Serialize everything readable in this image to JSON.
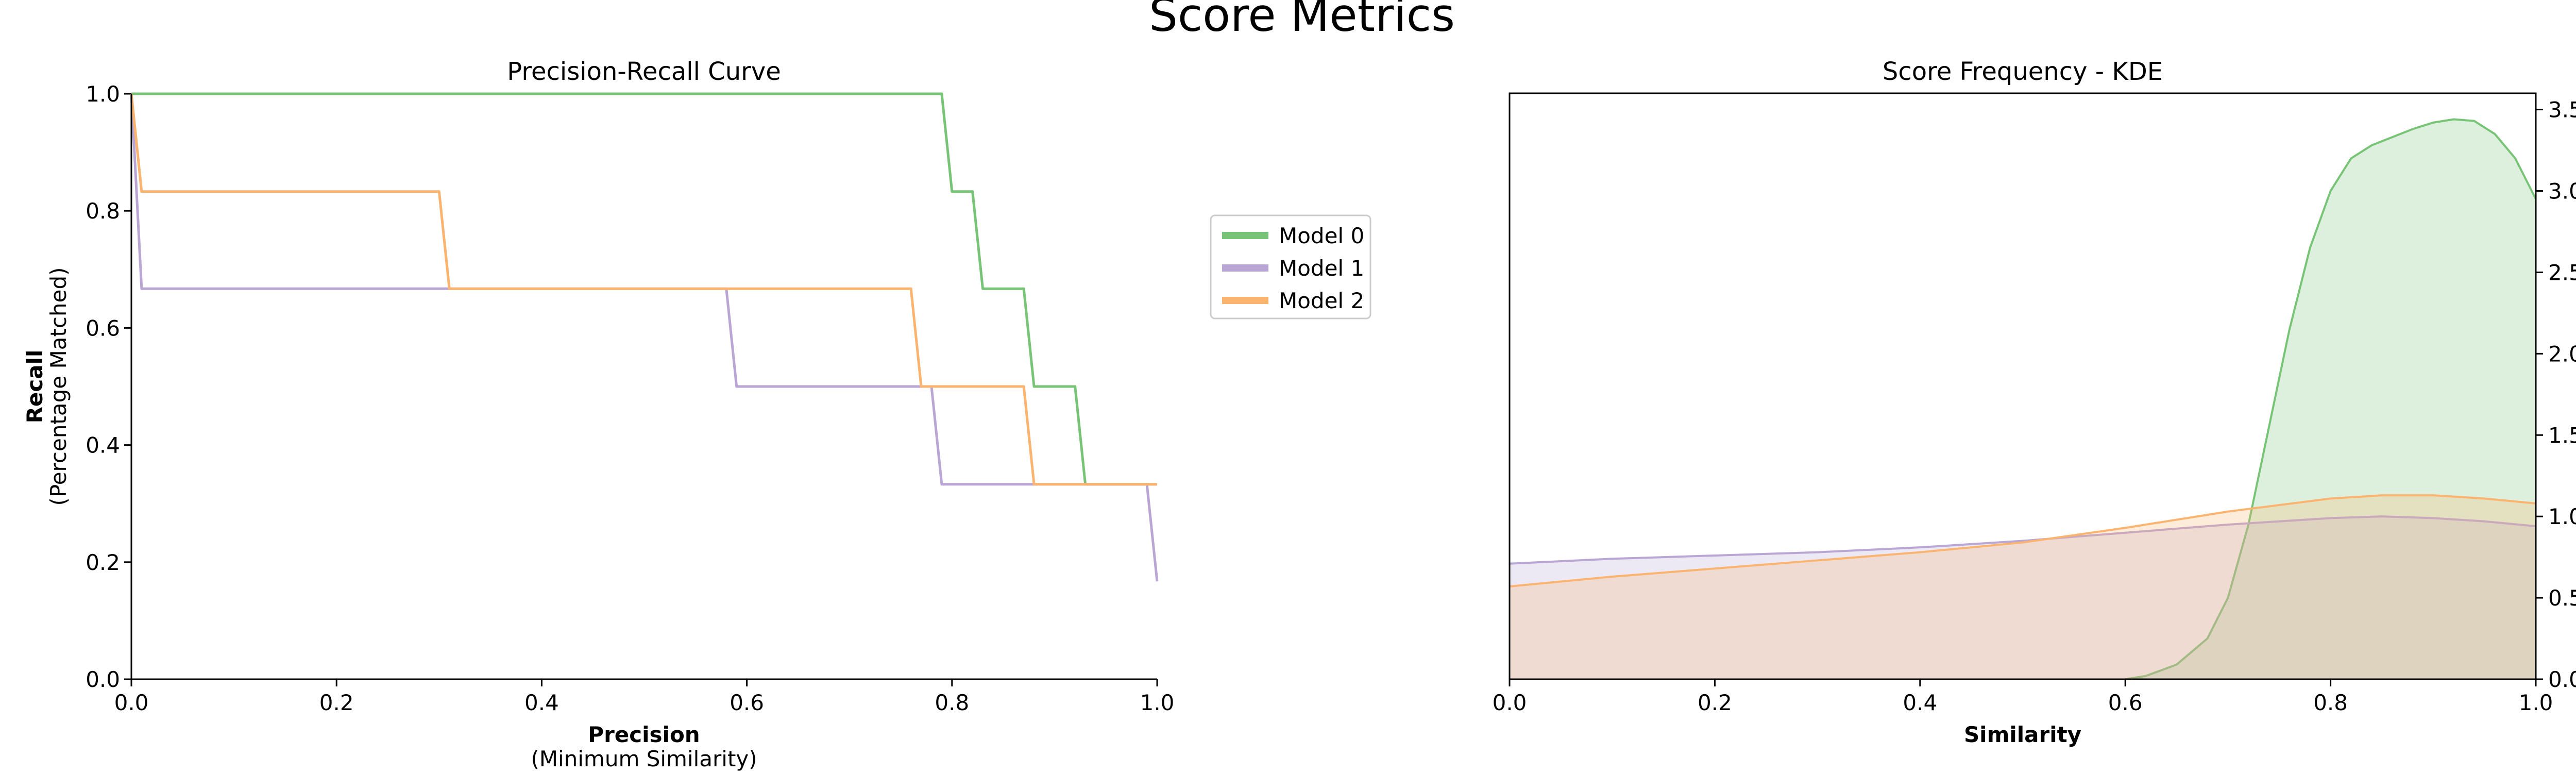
{
  "figure": {
    "title": "Score Metrics"
  },
  "colors": {
    "model0": "#77c476",
    "model1": "#b9a6d4",
    "model2": "#fbb46f"
  },
  "legend": {
    "items": [
      "Model 0",
      "Model 1",
      "Model 2"
    ],
    "placement": "between-panels-top"
  },
  "chart_data": [
    {
      "type": "line",
      "title": "Precision-Recall Curve",
      "xlabel": "Precision",
      "xlabel_sub": "(Minimum Similarity)",
      "ylabel": "Recall",
      "ylabel_sub": "(Percentage Matched)",
      "xlim": [
        0,
        1
      ],
      "ylim": [
        0,
        1
      ],
      "xticks": [
        "0.0",
        "0.2",
        "0.4",
        "0.6",
        "0.8",
        "1.0"
      ],
      "yticks": [
        "0.0",
        "0.2",
        "0.4",
        "0.6",
        "0.8",
        "1.0"
      ],
      "grid": false,
      "series": [
        {
          "name": "Model 0",
          "x": [
            0.0,
            0.79,
            0.8,
            0.82,
            0.83,
            0.87,
            0.88,
            0.9,
            0.92,
            0.93,
            1.0
          ],
          "y": [
            1.0,
            1.0,
            0.833,
            0.833,
            0.667,
            0.667,
            0.5,
            0.5,
            0.5,
            0.333,
            0.333
          ]
        },
        {
          "name": "Model 1",
          "x": [
            0.0,
            0.01,
            0.58,
            0.59,
            0.78,
            0.79,
            0.99,
            1.0
          ],
          "y": [
            1.0,
            0.667,
            0.667,
            0.5,
            0.5,
            0.333,
            0.333,
            0.167
          ]
        },
        {
          "name": "Model 2",
          "x": [
            0.0,
            0.01,
            0.3,
            0.31,
            0.76,
            0.77,
            0.87,
            0.88,
            1.0
          ],
          "y": [
            1.0,
            0.833,
            0.833,
            0.667,
            0.667,
            0.5,
            0.5,
            0.333,
            0.333
          ]
        }
      ]
    },
    {
      "type": "area",
      "title": "Score Frequency - KDE",
      "xlabel": "Similarity",
      "ylabel": "",
      "xlim": [
        0,
        1
      ],
      "ylim": [
        0,
        3.6
      ],
      "y_axis_side": "right",
      "xticks": [
        "0.0",
        "0.2",
        "0.4",
        "0.6",
        "0.8",
        "1.0"
      ],
      "yticks": [
        "0.0",
        "0.5",
        "1.0",
        "1.5",
        "2.0",
        "2.5",
        "3.0",
        "3.5"
      ],
      "grid": false,
      "series": [
        {
          "name": "Model 0",
          "x": [
            0.6,
            0.62,
            0.65,
            0.68,
            0.7,
            0.72,
            0.74,
            0.76,
            0.78,
            0.8,
            0.82,
            0.84,
            0.86,
            0.88,
            0.9,
            0.92,
            0.94,
            0.96,
            0.98,
            1.0
          ],
          "y": [
            0.0,
            0.02,
            0.09,
            0.25,
            0.5,
            0.95,
            1.55,
            2.15,
            2.65,
            3.0,
            3.2,
            3.28,
            3.33,
            3.38,
            3.42,
            3.44,
            3.43,
            3.35,
            3.2,
            2.95
          ]
        },
        {
          "name": "Model 1",
          "x": [
            0.0,
            0.1,
            0.2,
            0.3,
            0.4,
            0.5,
            0.6,
            0.7,
            0.8,
            0.85,
            0.9,
            0.95,
            1.0
          ],
          "y": [
            0.71,
            0.74,
            0.76,
            0.78,
            0.81,
            0.85,
            0.9,
            0.95,
            0.99,
            1.0,
            0.99,
            0.97,
            0.94
          ]
        },
        {
          "name": "Model 2",
          "x": [
            0.0,
            0.1,
            0.2,
            0.3,
            0.4,
            0.5,
            0.6,
            0.7,
            0.8,
            0.85,
            0.9,
            0.95,
            1.0
          ],
          "y": [
            0.57,
            0.63,
            0.68,
            0.73,
            0.78,
            0.84,
            0.93,
            1.03,
            1.11,
            1.13,
            1.13,
            1.11,
            1.08
          ]
        }
      ]
    }
  ]
}
